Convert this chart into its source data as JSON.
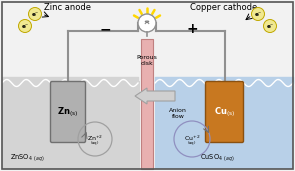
{
  "bg_color": "#f2f2f2",
  "left_bg": "#d4d4d4",
  "right_bg": "#b8d0e8",
  "zinc_color": "#b0b0b0",
  "zinc_edge": "#707070",
  "copper_color": "#c87820",
  "copper_edge": "#8a5010",
  "porous_color": "#e8b0b0",
  "porous_edge": "#c08080",
  "wire_color": "#909090",
  "bulb_fc": "#ffffff",
  "bulb_ec": "#909090",
  "ray_color": "#FFD700",
  "electron_fc": "#f0e890",
  "electron_ec": "#c0a800",
  "arrow_fc": "#d0d0d0",
  "arrow_ec": "#a0a0a0",
  "ion_ec_left": "#a0a0a0",
  "ion_ec_right": "#9090c0",
  "border_color": "#555555",
  "title_left": "Zinc anode",
  "title_right": "Copper cathode",
  "label_porous": "Porous\ndisk",
  "label_anion": "Anion\nflow",
  "label_znso4": "ZnSO",
  "label_cuso4": "CuSO",
  "minus_sign": "−",
  "plus_sign": "+"
}
